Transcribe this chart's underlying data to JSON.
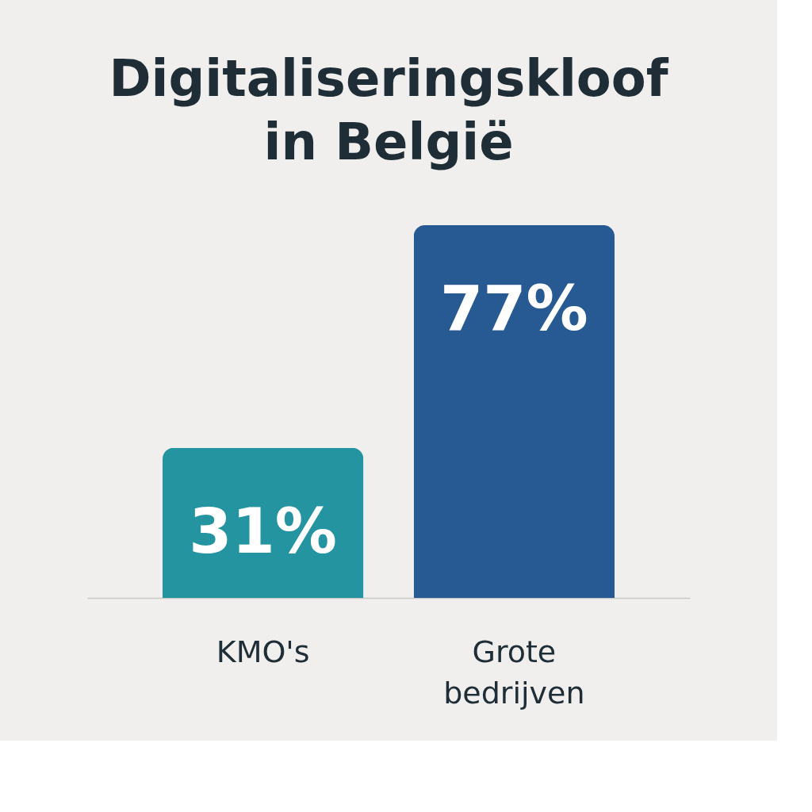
{
  "chart_data": {
    "type": "bar",
    "title": "Digitaliseringskloof in België",
    "categories": [
      "KMO's",
      "Grote bedrijven"
    ],
    "values": [
      31,
      77
    ],
    "colors": [
      "#2394a0",
      "#275a93"
    ],
    "value_labels": [
      "31%",
      "77%"
    ]
  }
}
